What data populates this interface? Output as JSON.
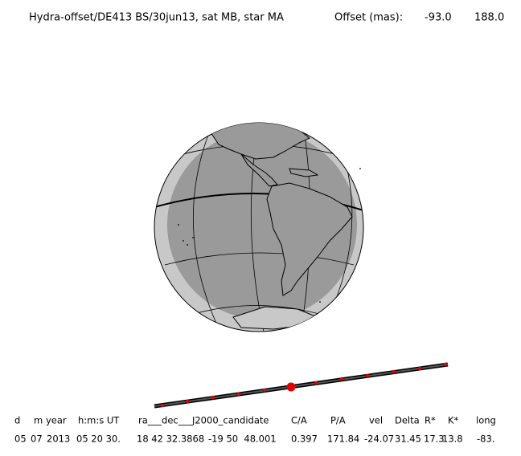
{
  "header": {
    "title": "Hydra-offset/DE413 BS/30jun13, sat MB, star MA",
    "offset_label": "Offset (mas):",
    "offset_values": [
      "-93.0",
      "188.0"
    ]
  },
  "table": {
    "columns": [
      "d",
      "m",
      "year",
      "h:m:s UT",
      "ra___dec___J2000_candidate",
      "C/A",
      "P/A",
      "vel",
      "Delta",
      "R*",
      "K*",
      "long"
    ],
    "row": [
      "05",
      "07",
      "2013",
      "05 20 30.",
      "18 42 32.3868",
      "-19 50  48.001",
      "0.397",
      "171.84",
      "-24.07",
      "31.45",
      "17.3",
      "13.8",
      "-83."
    ]
  }
}
